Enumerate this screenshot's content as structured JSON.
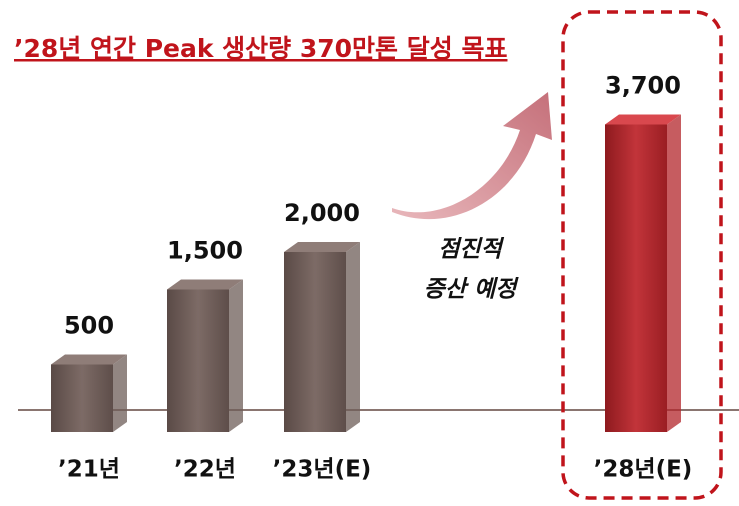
{
  "chart_data": {
    "type": "bar",
    "title": "’28년 연간 Peak 생산량 370만톤 달성 목표",
    "categories": [
      "’21년",
      "’22년",
      "’23년(E)",
      "’28년(E)"
    ],
    "values": [
      500,
      1500,
      2000,
      3700
    ],
    "value_labels": [
      "500",
      "1,500",
      "2,000",
      "3,700"
    ],
    "colors": [
      "#6e5d58",
      "#6e5d58",
      "#6e5d58",
      "#b3262b"
    ],
    "annotation": [
      "점진적",
      "증산 예정"
    ]
  }
}
